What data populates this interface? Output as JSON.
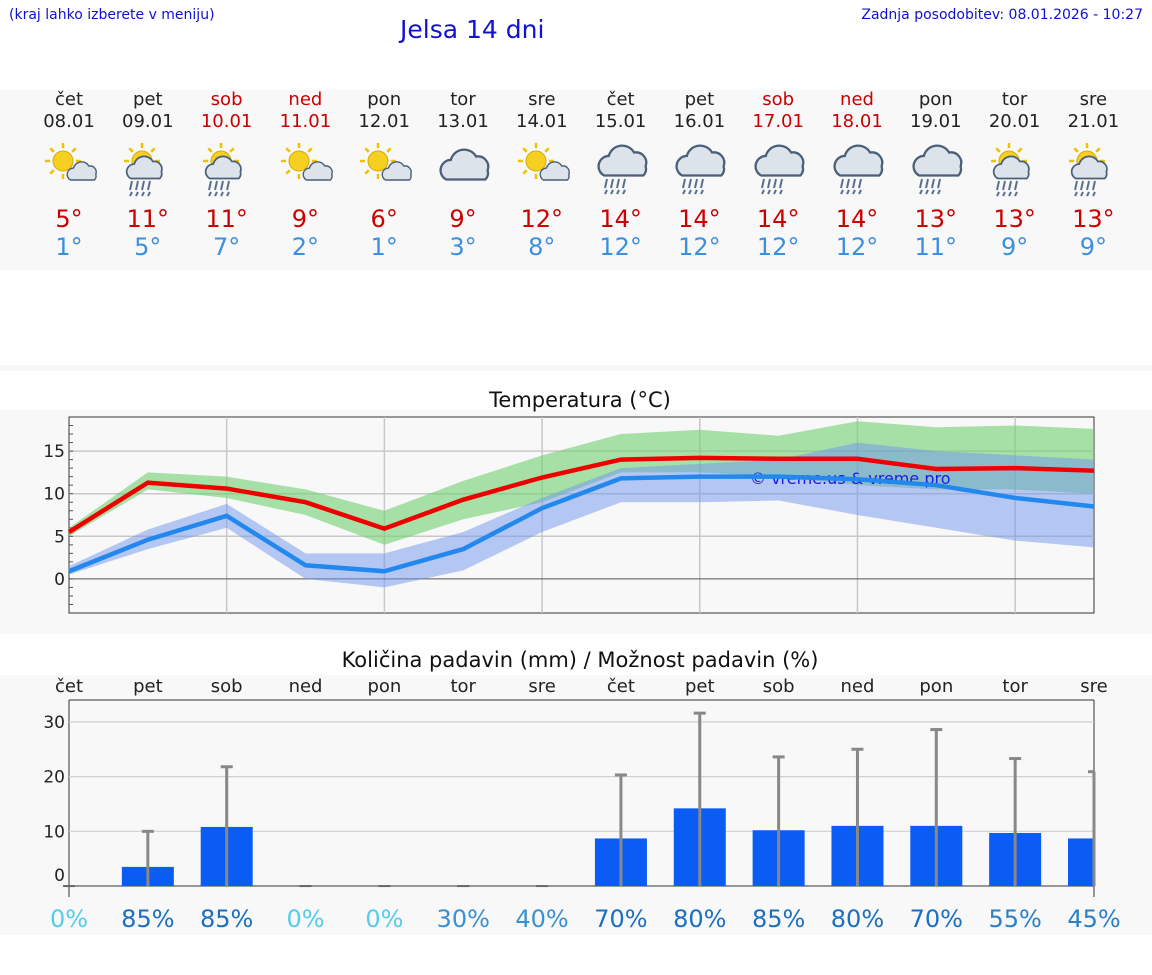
{
  "header": {
    "hint": "(kraj lahko izberete v meniju)",
    "title": "Jelsa 14 dni",
    "updated": "Zadnja posodobitev: 08.01.2026 - 10:27"
  },
  "days": [
    {
      "name": "čet",
      "date": "08.01",
      "weekend": false,
      "icon": "sun-cloud-icon",
      "max": "5°",
      "min": "1°"
    },
    {
      "name": "pet",
      "date": "09.01",
      "weekend": false,
      "icon": "sun-cloud-rain-icon",
      "max": "11°",
      "min": "5°"
    },
    {
      "name": "sob",
      "date": "10.01",
      "weekend": true,
      "icon": "sun-cloud-rain-icon",
      "max": "11°",
      "min": "7°"
    },
    {
      "name": "ned",
      "date": "11.01",
      "weekend": true,
      "icon": "sun-cloud-icon",
      "max": "9°",
      "min": "2°"
    },
    {
      "name": "pon",
      "date": "12.01",
      "weekend": false,
      "icon": "sun-cloud-icon",
      "max": "6°",
      "min": "1°"
    },
    {
      "name": "tor",
      "date": "13.01",
      "weekend": false,
      "icon": "cloud-icon",
      "max": "9°",
      "min": "3°"
    },
    {
      "name": "sre",
      "date": "14.01",
      "weekend": false,
      "icon": "sun-cloud-icon",
      "max": "12°",
      "min": "8°"
    },
    {
      "name": "čet",
      "date": "15.01",
      "weekend": false,
      "icon": "cloud-rain-icon",
      "max": "14°",
      "min": "12°"
    },
    {
      "name": "pet",
      "date": "16.01",
      "weekend": false,
      "icon": "cloud-rain-icon",
      "max": "14°",
      "min": "12°"
    },
    {
      "name": "sob",
      "date": "17.01",
      "weekend": true,
      "icon": "cloud-rain-icon",
      "max": "14°",
      "min": "12°"
    },
    {
      "name": "ned",
      "date": "18.01",
      "weekend": true,
      "icon": "cloud-rain-icon",
      "max": "14°",
      "min": "12°"
    },
    {
      "name": "pon",
      "date": "19.01",
      "weekend": false,
      "icon": "cloud-rain-icon",
      "max": "13°",
      "min": "11°"
    },
    {
      "name": "tor",
      "date": "20.01",
      "weekend": false,
      "icon": "sun-cloud-rain-icon",
      "max": "13°",
      "min": "9°"
    },
    {
      "name": "sre",
      "date": "21.01",
      "weekend": false,
      "icon": "sun-cloud-rain-icon",
      "max": "13°",
      "min": "9°"
    }
  ],
  "colors": {
    "max": "#ee0000",
    "min": "#2288ee",
    "max_band": "#6fd070",
    "min_band": "#6f95ee",
    "bar": "#0a5cf5",
    "whisker": "#888888"
  },
  "chart_data": [
    {
      "type": "line",
      "title": "Temperatura (°C)",
      "watermark": "© vreme.us & vreme.pro",
      "x": [
        0,
        1,
        2,
        3,
        4,
        5,
        6,
        7,
        8,
        9,
        10,
        11,
        12,
        13
      ],
      "ylim": [
        -4,
        19
      ],
      "yticks": [
        "0",
        "5",
        "10",
        "15"
      ],
      "series": [
        {
          "name": "max",
          "values": [
            5.5,
            11.3,
            10.6,
            9.0,
            5.9,
            9.3,
            11.9,
            14.0,
            14.2,
            14.1,
            14.1,
            12.9,
            13.0,
            12.7
          ],
          "band_low": [
            5,
            10.5,
            9.5,
            7.5,
            4,
            7,
            9,
            12.5,
            12.5,
            12,
            11,
            10.5,
            10.5,
            10
          ],
          "band_high": [
            6,
            12.5,
            12,
            10.5,
            8,
            11.5,
            14.5,
            17,
            17.5,
            16.8,
            18.5,
            17.8,
            18,
            17.6
          ]
        },
        {
          "name": "min",
          "values": [
            0.9,
            4.6,
            7.4,
            1.6,
            0.9,
            3.5,
            8.3,
            11.8,
            12.0,
            12.0,
            11.7,
            11.0,
            9.5,
            8.5
          ],
          "band_low": [
            0.5,
            3.5,
            6,
            0,
            -1,
            1,
            5.5,
            9,
            9,
            9.2,
            7.5,
            6,
            4.5,
            3.7
          ],
          "band_high": [
            1.5,
            5.8,
            8.8,
            3,
            3,
            5.5,
            9.5,
            13,
            13.5,
            14,
            16,
            15,
            14.5,
            14
          ]
        }
      ]
    },
    {
      "type": "bar",
      "title": "Količina padavin (mm) / Možnost padavin (%)",
      "categories": [
        "čet",
        "pet",
        "sob",
        "ned",
        "pon",
        "tor",
        "sre",
        "čet",
        "pet",
        "sob",
        "ned",
        "pon",
        "tor",
        "sre"
      ],
      "values": [
        0,
        3.5,
        10.8,
        0,
        0,
        0,
        0,
        8.7,
        14.2,
        10.2,
        11,
        11,
        9.7,
        8.7
      ],
      "whisker_high": [
        0,
        10,
        21.8,
        0,
        0,
        0,
        0,
        20.3,
        31.6,
        23.6,
        25,
        28.6,
        23.3,
        20.9
      ],
      "chance": [
        "0%",
        "85%",
        "85%",
        "0%",
        "0%",
        "30%",
        "40%",
        "70%",
        "80%",
        "85%",
        "80%",
        "70%",
        "55%",
        "45%"
      ],
      "chance_colors": [
        "#55ccee",
        "#1a6fc0",
        "#1a6fc0",
        "#55ccee",
        "#55ccee",
        "#3a90d0",
        "#3a90d0",
        "#1a6fc0",
        "#1a6fc0",
        "#1a6fc0",
        "#1a6fc0",
        "#1a6fc0",
        "#2a80c8",
        "#2a80c8"
      ],
      "ylim": [
        -2,
        34
      ],
      "yticks": [
        "0",
        "10",
        "20",
        "30"
      ]
    }
  ]
}
